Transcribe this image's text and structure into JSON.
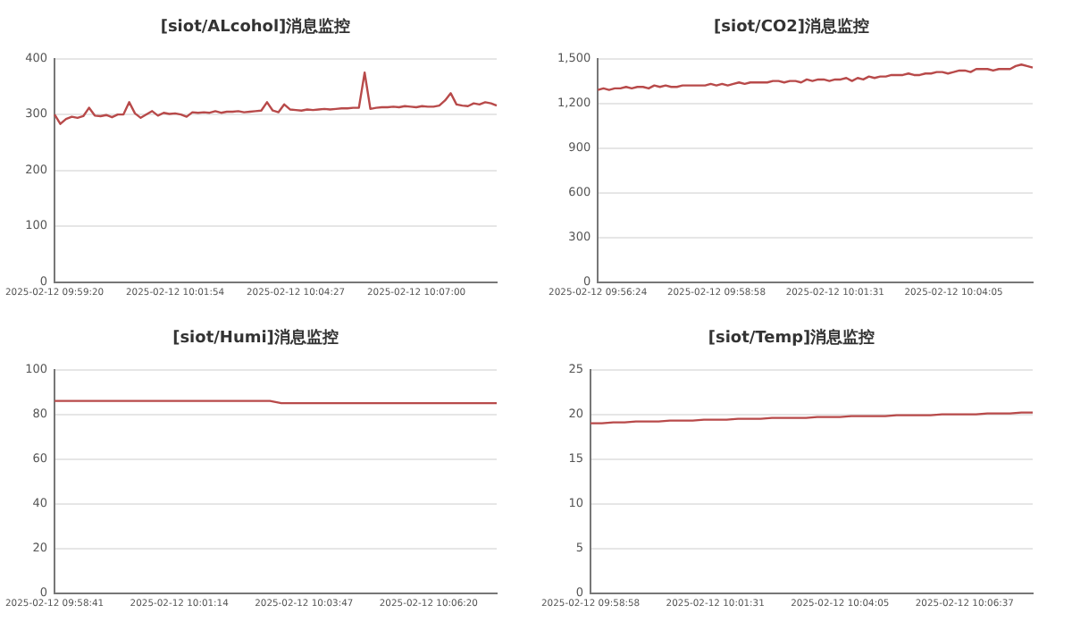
{
  "chart_data": [
    {
      "type": "line",
      "title": "[siot/ALcohol]消息监控",
      "color": "#b84a4a",
      "marker": "none",
      "grid": "y",
      "ylim": [
        0,
        400
      ],
      "yticks": [
        0,
        100,
        200,
        300,
        400
      ],
      "categories": [
        "2025-02-12 09:59:20",
        null,
        null,
        null,
        null,
        null,
        null,
        null,
        null,
        null,
        null,
        null,
        null,
        null,
        null,
        null,
        null,
        null,
        null,
        null,
        null,
        "2025-02-12 10:01:54",
        null,
        null,
        null,
        null,
        null,
        null,
        null,
        null,
        null,
        null,
        null,
        null,
        null,
        null,
        null,
        null,
        null,
        null,
        null,
        null,
        "2025-02-12 10:04:27",
        null,
        null,
        null,
        null,
        null,
        null,
        null,
        null,
        null,
        null,
        null,
        null,
        null,
        null,
        null,
        null,
        null,
        null,
        null,
        null,
        "2025-02-12 10:07:00",
        null,
        null,
        null,
        null,
        null,
        null,
        null,
        null,
        null,
        null,
        null,
        null,
        null,
        null
      ],
      "values": [
        300,
        283,
        292,
        296,
        294,
        297,
        312,
        298,
        297,
        299,
        295,
        300,
        300,
        322,
        302,
        294,
        300,
        306,
        298,
        303,
        301,
        302,
        300,
        296,
        304,
        303,
        304,
        303,
        306,
        303,
        305,
        305,
        306,
        304,
        305,
        306,
        307,
        322,
        307,
        304,
        318,
        309,
        308,
        307,
        309,
        308,
        309,
        310,
        309,
        310,
        311,
        311,
        312,
        312,
        375,
        310,
        312,
        313,
        313,
        314,
        313,
        315,
        314,
        313,
        315,
        314,
        314,
        316,
        325,
        338,
        318,
        316,
        315,
        320,
        318,
        322,
        320,
        316
      ]
    },
    {
      "type": "line",
      "title": "[siot/CO2]消息监控",
      "color": "#b84a4a",
      "marker": "none",
      "grid": "y",
      "ylim": [
        0,
        1500
      ],
      "yticks": [
        0,
        300,
        600,
        900,
        {
          "value": 1200,
          "label": "1,200"
        },
        {
          "value": 1500,
          "label": "1,500"
        }
      ],
      "categories": [
        "2025-02-12 09:56:24",
        null,
        null,
        null,
        null,
        null,
        null,
        null,
        null,
        null,
        null,
        null,
        null,
        null,
        null,
        null,
        null,
        null,
        null,
        null,
        null,
        "2025-02-12 09:58:58",
        null,
        null,
        null,
        null,
        null,
        null,
        null,
        null,
        null,
        null,
        null,
        null,
        null,
        null,
        null,
        null,
        null,
        null,
        null,
        null,
        "2025-02-12 10:01:31",
        null,
        null,
        null,
        null,
        null,
        null,
        null,
        null,
        null,
        null,
        null,
        null,
        null,
        null,
        null,
        null,
        null,
        null,
        null,
        null,
        "2025-02-12 10:04:05",
        null,
        null,
        null,
        null,
        null,
        null,
        null,
        null,
        null,
        null,
        null,
        null,
        null,
        null
      ],
      "values": [
        1290,
        1300,
        1290,
        1300,
        1300,
        1310,
        1300,
        1310,
        1310,
        1300,
        1320,
        1310,
        1320,
        1310,
        1310,
        1320,
        1320,
        1320,
        1320,
        1320,
        1330,
        1320,
        1330,
        1320,
        1330,
        1340,
        1330,
        1340,
        1340,
        1340,
        1340,
        1350,
        1350,
        1340,
        1350,
        1350,
        1340,
        1360,
        1350,
        1360,
        1360,
        1350,
        1360,
        1360,
        1370,
        1350,
        1370,
        1360,
        1380,
        1370,
        1380,
        1380,
        1390,
        1390,
        1390,
        1400,
        1390,
        1390,
        1400,
        1400,
        1410,
        1410,
        1400,
        1410,
        1420,
        1420,
        1410,
        1430,
        1430,
        1430,
        1420,
        1430,
        1430,
        1430,
        1450,
        1460,
        1450,
        1440
      ]
    },
    {
      "type": "line",
      "title": "[siot/Humi]消息监控",
      "color": "#b84a4a",
      "marker": "none",
      "grid": "y",
      "ylim": [
        0,
        100
      ],
      "yticks": [
        0,
        20,
        40,
        60,
        80,
        100
      ],
      "categories": [
        "2025-02-12 09:58:41",
        null,
        null,
        null,
        null,
        null,
        null,
        null,
        null,
        null,
        null,
        "2025-02-12 10:01:14",
        null,
        null,
        null,
        null,
        null,
        null,
        null,
        null,
        null,
        null,
        "2025-02-12 10:03:47",
        null,
        null,
        null,
        null,
        null,
        null,
        null,
        null,
        null,
        null,
        "2025-02-12 10:06:20",
        null,
        null,
        null,
        null,
        null,
        null
      ],
      "values": [
        86,
        86,
        86,
        86,
        86,
        86,
        86,
        86,
        86,
        86,
        86,
        86,
        86,
        86,
        86,
        86,
        86,
        86,
        86,
        86,
        85,
        85,
        85,
        85,
        85,
        85,
        85,
        85,
        85,
        85,
        85,
        85,
        85,
        85,
        85,
        85,
        85,
        85,
        85,
        85
      ]
    },
    {
      "type": "line",
      "title": "[siot/Temp]消息监控",
      "color": "#b84a4a",
      "marker": "none",
      "grid": "y",
      "ylim": [
        0,
        25
      ],
      "yticks": [
        0,
        5,
        10,
        15,
        20,
        25
      ],
      "categories": [
        "2025-02-12 09:58:58",
        null,
        null,
        null,
        null,
        null,
        null,
        null,
        null,
        null,
        null,
        "2025-02-12 10:01:31",
        null,
        null,
        null,
        null,
        null,
        null,
        null,
        null,
        null,
        null,
        "2025-02-12 10:04:05",
        null,
        null,
        null,
        null,
        null,
        null,
        null,
        null,
        null,
        null,
        "2025-02-12 10:06:37",
        null,
        null,
        null,
        null,
        null,
        null
      ],
      "values": [
        19.0,
        19.0,
        19.1,
        19.1,
        19.2,
        19.2,
        19.2,
        19.3,
        19.3,
        19.3,
        19.4,
        19.4,
        19.4,
        19.5,
        19.5,
        19.5,
        19.6,
        19.6,
        19.6,
        19.6,
        19.7,
        19.7,
        19.7,
        19.8,
        19.8,
        19.8,
        19.8,
        19.9,
        19.9,
        19.9,
        19.9,
        20.0,
        20.0,
        20.0,
        20.0,
        20.1,
        20.1,
        20.1,
        20.2,
        20.2
      ]
    }
  ]
}
